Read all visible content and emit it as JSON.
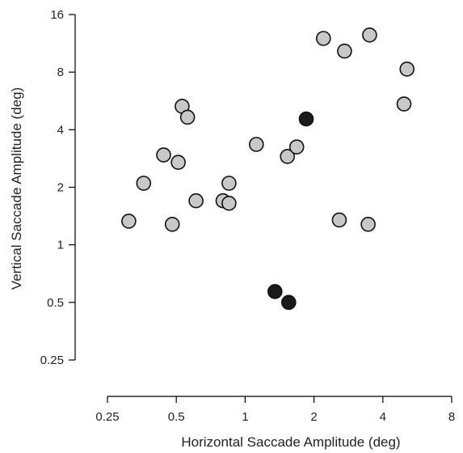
{
  "chart_data": {
    "type": "scatter",
    "xlabel": "Horizontal Saccade Amplitude (deg)",
    "ylabel": "Vertical Saccade Amplitude (deg)",
    "x_scale": "log2",
    "y_scale": "log2",
    "xlim": [
      0.25,
      8
    ],
    "ylim": [
      0.25,
      16
    ],
    "x_ticks": [
      0.25,
      0.5,
      1,
      2,
      4,
      8
    ],
    "x_tick_labels": [
      "0.25",
      "0.5",
      "1",
      "2",
      "4",
      "8"
    ],
    "y_ticks": [
      0.25,
      0.5,
      1,
      2,
      4,
      8,
      16
    ],
    "y_tick_labels": [
      "0.25",
      "0.5",
      "1",
      "2",
      "4",
      "8",
      "16"
    ],
    "grid": false,
    "series": [
      {
        "color": "#c8c8c8",
        "points": [
          [
            0.31,
            1.33
          ],
          [
            0.36,
            2.1
          ],
          [
            0.44,
            2.95
          ],
          [
            0.48,
            1.28
          ],
          [
            0.51,
            2.7
          ],
          [
            0.53,
            5.3
          ],
          [
            0.56,
            4.65
          ],
          [
            0.61,
            1.7
          ],
          [
            0.8,
            1.7
          ],
          [
            0.85,
            2.1
          ],
          [
            0.85,
            1.65
          ],
          [
            1.12,
            3.35
          ],
          [
            1.53,
            2.9
          ],
          [
            1.68,
            3.25
          ],
          [
            2.2,
            12.0
          ],
          [
            2.72,
            10.3
          ],
          [
            2.58,
            1.35
          ],
          [
            3.5,
            12.5
          ],
          [
            3.45,
            1.28
          ],
          [
            4.95,
            5.45
          ],
          [
            5.1,
            8.3
          ]
        ]
      },
      {
        "color": "#1a1a1a",
        "points": [
          [
            1.35,
            0.57
          ],
          [
            1.55,
            0.5
          ],
          [
            1.85,
            4.55
          ]
        ]
      }
    ]
  }
}
